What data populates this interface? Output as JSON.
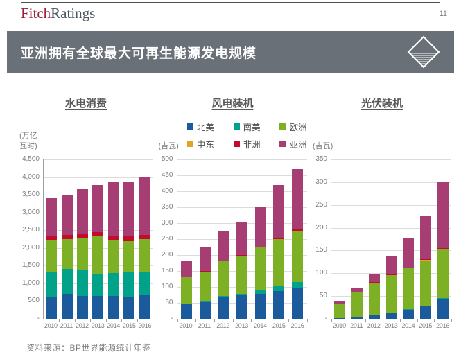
{
  "header": {
    "brand_fitch": "Fitch",
    "brand_ratings": "Ratings",
    "page_number": "11"
  },
  "banner": {
    "title": "亚洲拥有全球最大可再生能源发电规模"
  },
  "colors": {
    "banner_bg": "#6a7077",
    "brand_fitch": "#9a2240",
    "brand_ratings": "#4d5560",
    "axis": "#9aa0a4",
    "gridline": "#dcdcdc",
    "tick_text": "#7f7f7f"
  },
  "legend": {
    "position": "top-center",
    "items": [
      {
        "label": "北美",
        "color": "#1b5a9b"
      },
      {
        "label": "南美",
        "color": "#00a28a"
      },
      {
        "label": "欧洲",
        "color": "#7db025"
      },
      {
        "label": "中东",
        "color": "#e1a426"
      },
      {
        "label": "非洲",
        "color": "#c40b2e"
      },
      {
        "label": "亚洲",
        "color": "#a63d73"
      }
    ]
  },
  "footer": {
    "source": "资料来源：BP世界能源统计年鉴"
  },
  "chart_data": [
    {
      "type": "bar",
      "stacked": true,
      "title": "水电消费",
      "unit": "(万亿\n瓦时)",
      "categories": [
        "2010",
        "2011",
        "2012",
        "2013",
        "2014",
        "2015",
        "2016"
      ],
      "ylim": [
        0,
        4500
      ],
      "ytick_step": 500,
      "grid": true,
      "zero_tick_label": "-",
      "series": [
        {
          "name": "北美",
          "values": [
            620,
            695,
            655,
            655,
            640,
            630,
            660
          ]
        },
        {
          "name": "南美",
          "values": [
            690,
            715,
            720,
            625,
            650,
            685,
            645
          ]
        },
        {
          "name": "欧洲",
          "values": [
            900,
            840,
            905,
            1045,
            935,
            880,
            940
          ]
        },
        {
          "name": "中东",
          "values": [
            0,
            0,
            0,
            0,
            0,
            0,
            0
          ]
        },
        {
          "name": "非洲",
          "values": [
            130,
            120,
            110,
            120,
            130,
            130,
            130
          ]
        },
        {
          "name": "亚洲",
          "values": [
            1080,
            1130,
            1280,
            1335,
            1515,
            1560,
            1640
          ]
        }
      ],
      "totals": [
        3420,
        3500,
        3670,
        3780,
        3870,
        3885,
        4015
      ]
    },
    {
      "type": "bar",
      "stacked": true,
      "title": "风电装机",
      "unit": "(吉瓦)",
      "categories": [
        "2010",
        "2011",
        "2012",
        "2013",
        "2014",
        "2015",
        "2016"
      ],
      "ylim": [
        0,
        500
      ],
      "ytick_step": 50,
      "grid": true,
      "zero_tick_label": "-",
      "series": [
        {
          "name": "北美",
          "values": [
            45,
            53,
            68,
            73,
            79,
            88,
            98
          ]
        },
        {
          "name": "南美",
          "values": [
            2,
            3,
            4,
            5,
            11,
            15,
            17
          ]
        },
        {
          "name": "欧洲",
          "values": [
            85,
            92,
            110,
            120,
            133,
            147,
            161
          ]
        },
        {
          "name": "中东",
          "values": [
            0,
            0,
            0,
            0,
            0,
            1,
            1
          ]
        },
        {
          "name": "非洲",
          "values": [
            1,
            1,
            1,
            2,
            2,
            3,
            4
          ]
        },
        {
          "name": "亚洲",
          "values": [
            50,
            76,
            90,
            105,
            128,
            166,
            189
          ]
        }
      ],
      "totals": [
        183,
        225,
        273,
        305,
        353,
        420,
        470
      ]
    },
    {
      "type": "bar",
      "stacked": true,
      "title": "光伏装机",
      "unit": "(吉瓦)",
      "categories": [
        "2010",
        "2011",
        "2012",
        "2013",
        "2014",
        "2015",
        "2016"
      ],
      "ylim": [
        0,
        350
      ],
      "ytick_step": 50,
      "grid": true,
      "zero_tick_label": "-",
      "series": [
        {
          "name": "北美",
          "values": [
            2,
            5,
            8,
            13,
            20,
            28,
            44
          ]
        },
        {
          "name": "南美",
          "values": [
            0,
            0,
            0,
            0,
            1,
            1,
            2
          ]
        },
        {
          "name": "欧洲",
          "values": [
            31,
            53,
            71,
            83,
            90,
            99,
            106
          ]
        },
        {
          "name": "中东",
          "values": [
            0,
            0,
            0,
            0,
            0,
            1,
            1
          ]
        },
        {
          "name": "非洲",
          "values": [
            0,
            0,
            1,
            1,
            2,
            2,
            3
          ]
        },
        {
          "name": "亚洲",
          "values": [
            7,
            11,
            19,
            40,
            65,
            96,
            145
          ]
        }
      ],
      "totals": [
        40,
        69,
        99,
        137,
        178,
        227,
        301
      ]
    }
  ]
}
